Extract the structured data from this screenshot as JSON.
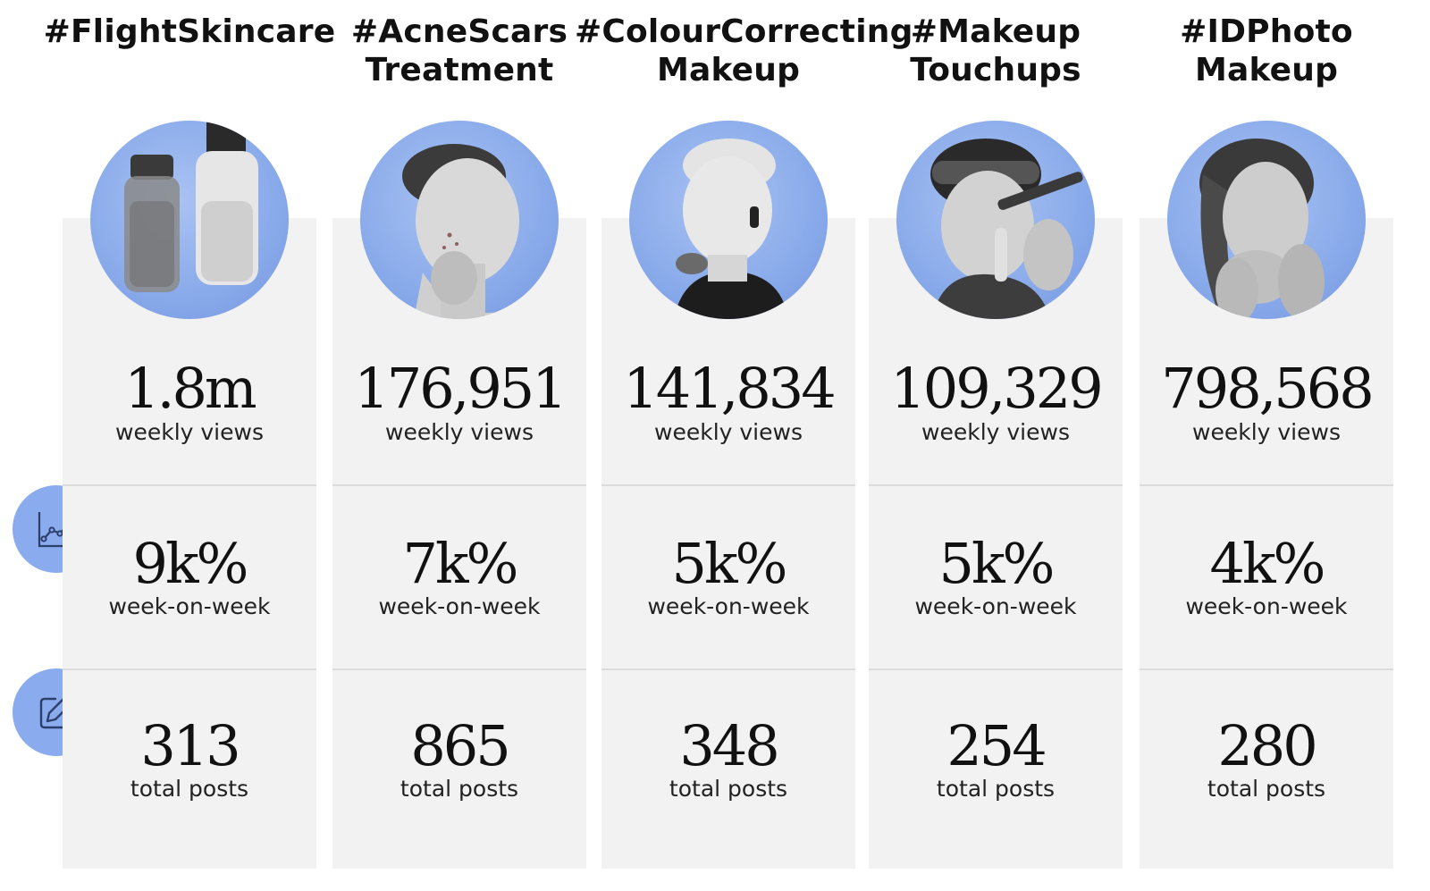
{
  "columns": [
    {
      "title": "#FlightSkincare",
      "photo": "skincare-bottles-photo",
      "views": "1.8m",
      "views_label": "weekly views",
      "growth": "9k%",
      "growth_label": "week-on-week",
      "posts": "313",
      "posts_label": "total posts"
    },
    {
      "title": "#AcneScars\nTreatment",
      "photo": "acne-face-photo",
      "views": "176,951",
      "views_label": "weekly views",
      "growth": "7k%",
      "growth_label": "week-on-week",
      "posts": "865",
      "posts_label": "total posts"
    },
    {
      "title": "#ColourCorrecting\nMakeup",
      "photo": "colour-correcting-makeup-photo",
      "views": "141,834",
      "views_label": "weekly views",
      "growth": "5k%",
      "growth_label": "week-on-week",
      "posts": "348",
      "posts_label": "total posts"
    },
    {
      "title": "#Makeup\nTouchups",
      "photo": "makeup-touchup-photo",
      "views": "109,329",
      "views_label": "weekly views",
      "growth": "5k%",
      "growth_label": "week-on-week",
      "posts": "254",
      "posts_label": "total posts"
    },
    {
      "title": "#IDPhoto\nMakeup",
      "photo": "id-photo-makeup-photo",
      "views": "798,568",
      "views_label": "weekly views",
      "growth": "4k%",
      "growth_label": "week-on-week",
      "posts": "280",
      "posts_label": "total posts"
    }
  ],
  "icons": {
    "growth": "line-chart-icon",
    "posts": "edit-icon"
  },
  "colors": {
    "accent": "#8aabee",
    "panel": "#f2f2f2",
    "divider": "#dcdcdc"
  }
}
